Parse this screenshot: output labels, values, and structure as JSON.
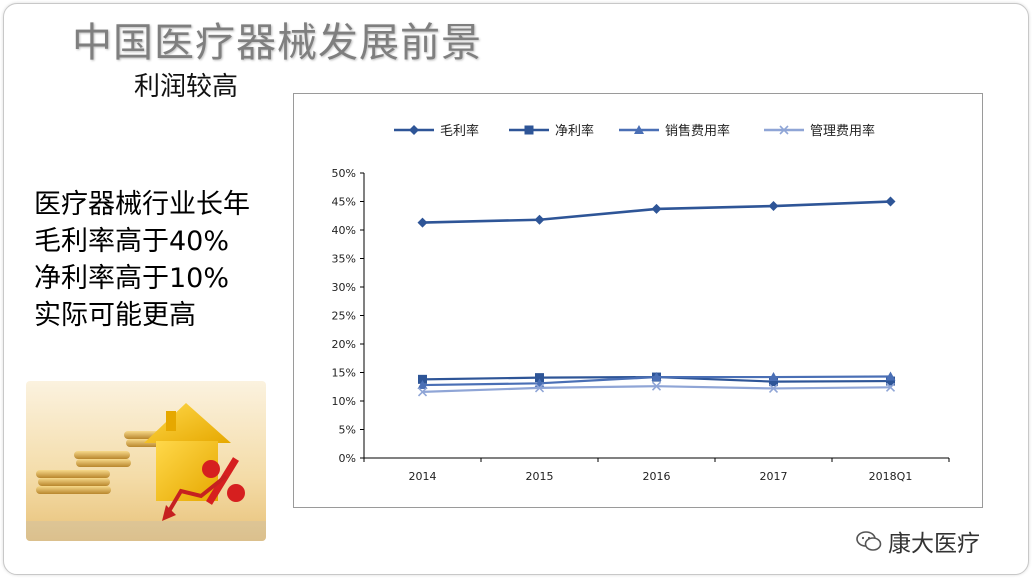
{
  "slide": {
    "title": "中国医疗器械发展前景",
    "subtitle": "利润较高",
    "bullets": [
      "医疗器械行业长年",
      "毛利率高于40%",
      "净利率高于10%",
      "实际可能更高"
    ],
    "watermark": "康大医疗"
  },
  "colors": {
    "series_main": "#2e5597",
    "series_light": "#8fa5d6",
    "axis": "#000000"
  },
  "chart_data": {
    "type": "line",
    "title": "",
    "xlabel": "",
    "ylabel": "",
    "categories": [
      "2014",
      "2015",
      "2016",
      "2017",
      "2018Q1"
    ],
    "ylim": [
      0,
      50
    ],
    "yticks": [
      0,
      5,
      10,
      15,
      20,
      25,
      30,
      35,
      40,
      45,
      50
    ],
    "ytick_labels": [
      "0%",
      "5%",
      "10%",
      "15%",
      "20%",
      "25%",
      "30%",
      "35%",
      "40%",
      "45%",
      "50%"
    ],
    "grid": false,
    "legend_position": "top",
    "series": [
      {
        "name": "毛利率",
        "marker": "diamond",
        "color": "#2e5597",
        "values": [
          41.3,
          41.8,
          43.7,
          44.2,
          45.0
        ]
      },
      {
        "name": "净利率",
        "marker": "square",
        "color": "#2e5597",
        "values": [
          13.8,
          14.1,
          14.2,
          13.4,
          13.5
        ]
      },
      {
        "name": "销售费用率",
        "marker": "triangle",
        "color": "#4a6fb5",
        "values": [
          12.8,
          13.1,
          14.2,
          14.2,
          14.3
        ]
      },
      {
        "name": "管理费用率",
        "marker": "x",
        "color": "#8fa5d6",
        "values": [
          11.6,
          12.3,
          12.6,
          12.2,
          12.4
        ]
      }
    ]
  }
}
